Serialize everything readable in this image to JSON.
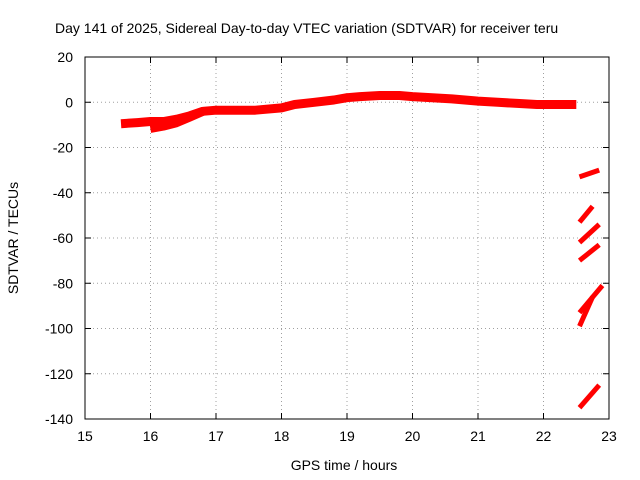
{
  "chart_data": {
    "type": "line",
    "title": "Day 141 of 2025, Sidereal Day-to-day VTEC variation (SDTVAR) for receiver teru",
    "xlabel": "GPS time / hours",
    "ylabel": "SDTVAR / TECUs",
    "xlim": [
      15,
      23
    ],
    "ylim": [
      -140,
      20
    ],
    "xticks": [
      15,
      16,
      17,
      18,
      19,
      20,
      21,
      22,
      23
    ],
    "yticks": [
      -140,
      -120,
      -100,
      -80,
      -60,
      -40,
      -20,
      0,
      20
    ],
    "grid": true,
    "color": "#ff0000",
    "series": [
      {
        "name": "main",
        "x": [
          15.55,
          15.8,
          16.0,
          16.2,
          16.4,
          16.6,
          16.8,
          17.0,
          17.3,
          17.6,
          18.0,
          18.2,
          18.5,
          18.8,
          19.0,
          19.2,
          19.5,
          19.8,
          20.0,
          20.3,
          20.6,
          21.0,
          21.3,
          21.6,
          21.9,
          22.2,
          22.5
        ],
        "y": [
          -9.5,
          -9,
          -8.5,
          -8.5,
          -7.5,
          -6,
          -4,
          -3.5,
          -3.5,
          -3.5,
          -2.5,
          -1,
          0,
          1,
          2,
          2.5,
          3,
          3,
          2.5,
          2,
          1.5,
          0.5,
          0,
          -0.5,
          -1,
          -1,
          -1
        ]
      },
      {
        "name": "dip",
        "x": [
          16.0,
          16.2,
          16.4,
          16.6,
          16.8
        ],
        "y": [
          -12,
          -11,
          -9.5,
          -7,
          -4.5
        ]
      },
      {
        "name": "seg1",
        "x": [
          22.55,
          22.85
        ],
        "y": [
          -33,
          -30
        ]
      },
      {
        "name": "seg2",
        "x": [
          22.55,
          22.75
        ],
        "y": [
          -53,
          -46
        ]
      },
      {
        "name": "seg3",
        "x": [
          22.55,
          22.85
        ],
        "y": [
          -62,
          -54
        ]
      },
      {
        "name": "seg4",
        "x": [
          22.55,
          22.85
        ],
        "y": [
          -70,
          -63
        ]
      },
      {
        "name": "seg5",
        "x": [
          22.55,
          22.9
        ],
        "y": [
          -93,
          -81
        ]
      },
      {
        "name": "seg6",
        "x": [
          22.55,
          22.75
        ],
        "y": [
          -99,
          -86
        ]
      },
      {
        "name": "seg7",
        "x": [
          22.55,
          22.85
        ],
        "y": [
          -135,
          -125
        ]
      }
    ]
  }
}
